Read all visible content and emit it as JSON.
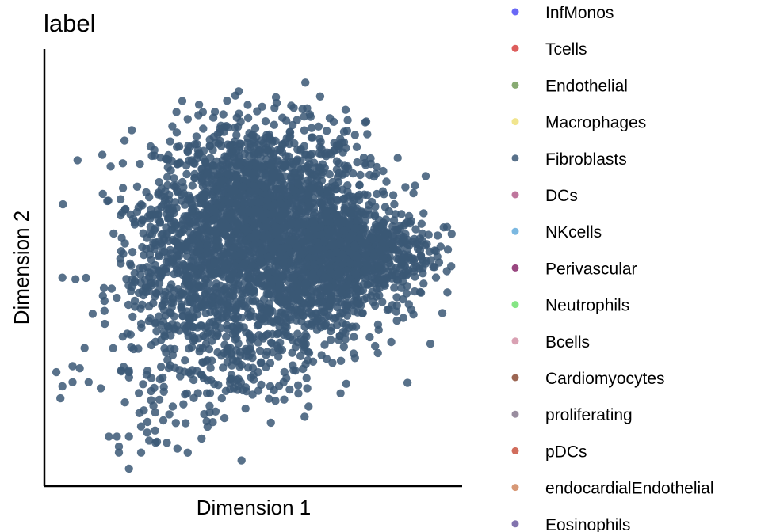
{
  "chart_data": {
    "type": "scatter",
    "title": "label",
    "xlabel": "Dimension 1",
    "ylabel": "Dimension 2",
    "xlim": [
      -10,
      10
    ],
    "ylim": [
      -10,
      10
    ],
    "grid": false,
    "legend_position": "right",
    "point_color": "#3b5875",
    "legend": [
      {
        "name": "InfMonos",
        "color": "#4f4df4"
      },
      {
        "name": "Tcells",
        "color": "#d7413f"
      },
      {
        "name": "Endothelial",
        "color": "#739c59"
      },
      {
        "name": "Macrophages",
        "color": "#efe07a"
      },
      {
        "name": "Fibroblasts",
        "color": "#3b5875"
      },
      {
        "name": "DCs",
        "color": "#b45e8c"
      },
      {
        "name": "NKcells",
        "color": "#64abdc"
      },
      {
        "name": "Perivascular",
        "color": "#87276a"
      },
      {
        "name": "Neutrophils",
        "color": "#70e06e"
      },
      {
        "name": "Bcells",
        "color": "#d290a6"
      },
      {
        "name": "Cardiomyocytes",
        "color": "#8b4b35"
      },
      {
        "name": "proliferating",
        "color": "#87798e"
      },
      {
        "name": "pDCs",
        "color": "#c9533f"
      },
      {
        "name": "endocardialEndothelial",
        "color": "#d0865e"
      },
      {
        "name": "Eosinophils",
        "color": "#6c5aa0"
      }
    ],
    "outlier_points": [
      [
        0.4,
        8.0
      ],
      [
        -0.8,
        7.0
      ],
      [
        -2.0,
        6.5
      ],
      [
        -2.5,
        5.8
      ],
      [
        -3.0,
        5.2
      ],
      [
        -3.5,
        4.0
      ],
      [
        -4.3,
        4.5
      ],
      [
        -5.2,
        3.5
      ],
      [
        -5.6,
        2.2
      ],
      [
        -6.4,
        1.2
      ],
      [
        -6.1,
        0.1
      ],
      [
        -5.4,
        -0.6
      ],
      [
        -6.8,
        -1.5
      ],
      [
        -7.4,
        -2.8
      ],
      [
        -8.0,
        -2.3
      ],
      [
        -9.5,
        -0.5
      ],
      [
        -8.4,
        -4.0
      ],
      [
        -9.0,
        -4.9
      ],
      [
        -9.8,
        -5.2
      ],
      [
        -9.0,
        -5.7
      ],
      [
        -9.5,
        -5.9
      ],
      [
        -9.6,
        -6.5
      ],
      [
        -8.2,
        -5.7
      ],
      [
        -7.6,
        -6.0
      ],
      [
        -6.2,
        -5.2
      ],
      [
        -5.5,
        -5.8
      ],
      [
        -6.4,
        -6.7
      ],
      [
        -5.1,
        -6.6
      ],
      [
        -4.9,
        -7.2
      ],
      [
        -4.2,
        -7.3
      ],
      [
        -6.2,
        -8.4
      ],
      [
        -6.8,
        -8.4
      ],
      [
        -7.2,
        -8.4
      ],
      [
        -6.7,
        -8.9
      ],
      [
        -5.6,
        -7.9
      ],
      [
        -4.5,
        -7.6
      ],
      [
        -5.3,
        -8.2
      ],
      [
        -6.7,
        -9.2
      ],
      [
        -6.2,
        -10.0
      ],
      [
        -5.6,
        -9.2
      ],
      [
        -5.2,
        -8.6
      ],
      [
        -3.5,
        -6.8
      ],
      [
        -2.5,
        -5.5
      ],
      [
        -3.8,
        -9.0
      ],
      [
        -2.6,
        -8.5
      ],
      [
        -2.2,
        -7.2
      ],
      [
        -1.6,
        -6.5
      ],
      [
        -1.0,
        -6.0
      ],
      [
        0.2,
        -5.2
      ],
      [
        0.8,
        -5.9
      ],
      [
        1.6,
        -5.5
      ],
      [
        2.6,
        -5.5
      ],
      [
        3.8,
        -3.6
      ],
      [
        5.0,
        -4.5
      ],
      [
        6.0,
        -3.9
      ],
      [
        6.8,
        -3.7
      ],
      [
        7.4,
        -2.5
      ],
      [
        7.8,
        -2.1
      ],
      [
        8.4,
        -0.8
      ],
      [
        8.7,
        0.8
      ],
      [
        9.1,
        1.6
      ],
      [
        9.4,
        2.0
      ],
      [
        8.4,
        2.7
      ],
      [
        7.9,
        3.7
      ],
      [
        7.5,
        4.0
      ],
      [
        6.9,
        3.6
      ],
      [
        6.4,
        4.8
      ],
      [
        5.5,
        5.2
      ],
      [
        5.0,
        6.6
      ],
      [
        3.6,
        6.8
      ],
      [
        2.8,
        7.5
      ],
      [
        1.6,
        7.3
      ],
      [
        -1.7,
        6.9
      ],
      [
        -3.3,
        5.8
      ]
    ]
  }
}
